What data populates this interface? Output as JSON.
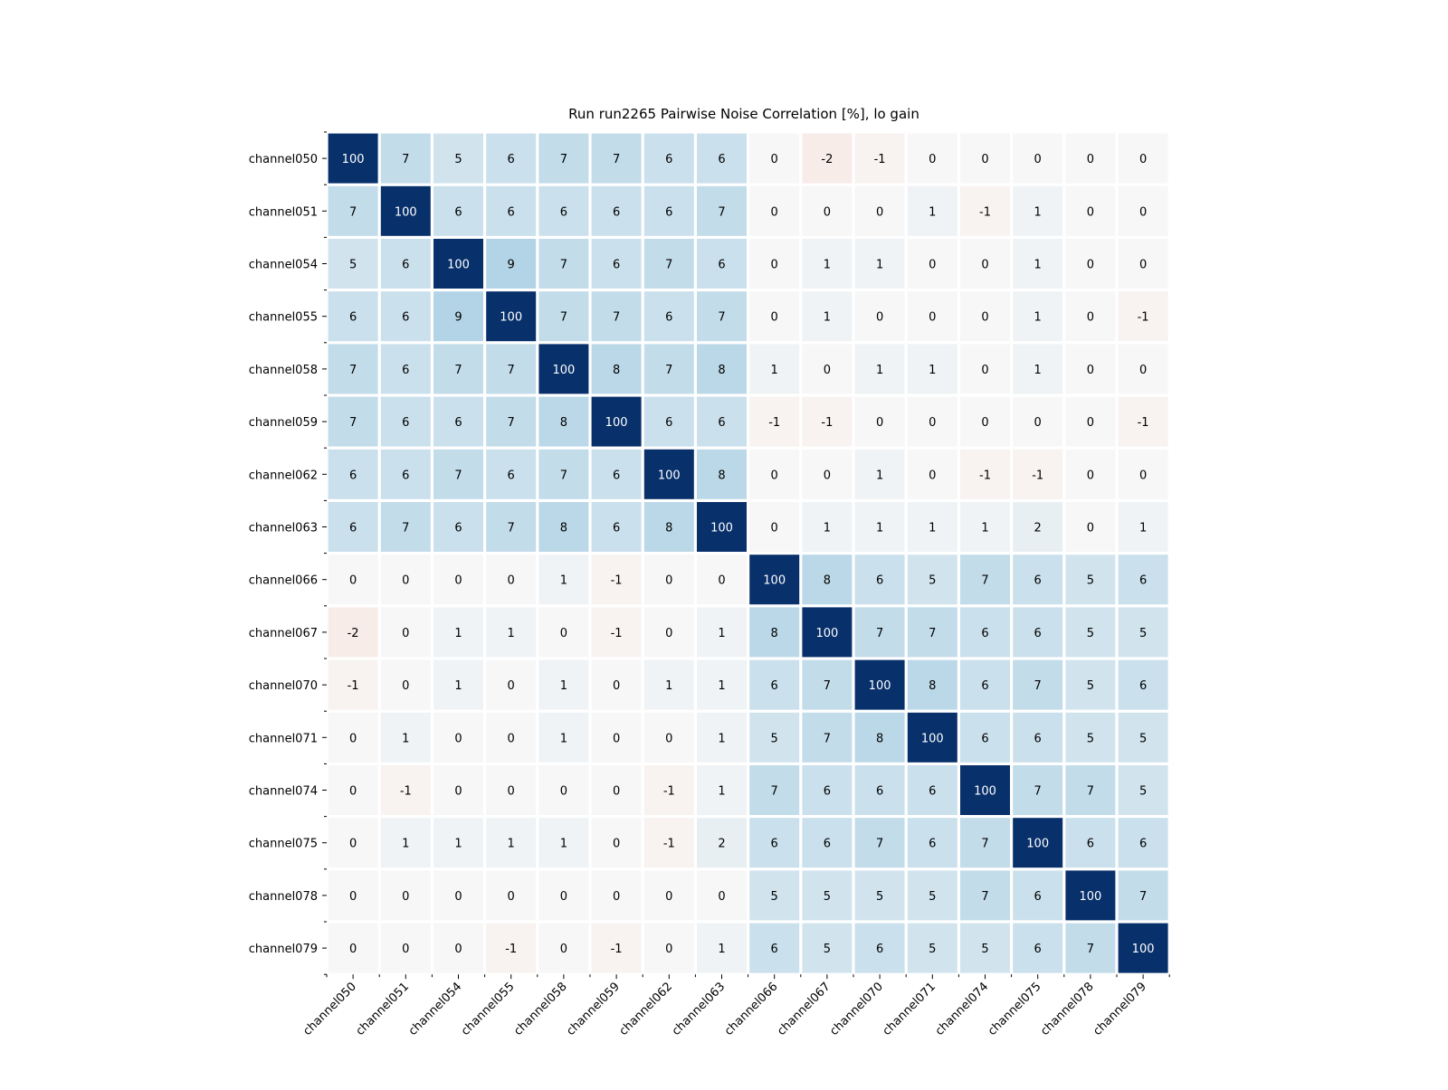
{
  "chart_data": {
    "type": "heatmap",
    "title": "Run run2265 Pairwise Noise Correlation [%], lo gain",
    "xlabel": "",
    "ylabel": "",
    "labels": [
      "channel050",
      "channel051",
      "channel054",
      "channel055",
      "channel058",
      "channel059",
      "channel062",
      "channel063",
      "channel066",
      "channel067",
      "channel070",
      "channel071",
      "channel074",
      "channel075",
      "channel078",
      "channel079"
    ],
    "values": [
      [
        100,
        7,
        5,
        6,
        7,
        7,
        6,
        6,
        0,
        -2,
        -1,
        0,
        0,
        0,
        0,
        0
      ],
      [
        7,
        100,
        6,
        6,
        6,
        6,
        6,
        7,
        0,
        0,
        0,
        1,
        -1,
        1,
        0,
        0
      ],
      [
        5,
        6,
        100,
        9,
        7,
        6,
        7,
        6,
        0,
        1,
        1,
        0,
        0,
        1,
        0,
        0
      ],
      [
        6,
        6,
        9,
        100,
        7,
        7,
        6,
        7,
        0,
        1,
        0,
        0,
        0,
        1,
        0,
        -1
      ],
      [
        7,
        6,
        7,
        7,
        100,
        8,
        7,
        8,
        1,
        0,
        1,
        1,
        0,
        1,
        0,
        0
      ],
      [
        7,
        6,
        6,
        7,
        8,
        100,
        6,
        6,
        -1,
        -1,
        0,
        0,
        0,
        0,
        0,
        -1
      ],
      [
        6,
        6,
        7,
        6,
        7,
        6,
        100,
        8,
        0,
        0,
        1,
        0,
        -1,
        -1,
        0,
        0
      ],
      [
        6,
        7,
        6,
        7,
        8,
        6,
        8,
        100,
        0,
        1,
        1,
        1,
        1,
        2,
        0,
        1
      ],
      [
        0,
        0,
        0,
        0,
        1,
        -1,
        0,
        0,
        100,
        8,
        6,
        5,
        7,
        6,
        5,
        6
      ],
      [
        -2,
        0,
        1,
        1,
        0,
        -1,
        0,
        1,
        8,
        100,
        7,
        7,
        6,
        6,
        5,
        5
      ],
      [
        -1,
        0,
        1,
        0,
        1,
        0,
        1,
        1,
        6,
        7,
        100,
        8,
        6,
        7,
        5,
        6
      ],
      [
        0,
        1,
        0,
        0,
        1,
        0,
        0,
        1,
        5,
        7,
        8,
        100,
        6,
        6,
        5,
        5
      ],
      [
        0,
        -1,
        0,
        0,
        0,
        0,
        -1,
        1,
        7,
        6,
        6,
        6,
        100,
        7,
        7,
        5
      ],
      [
        0,
        1,
        1,
        1,
        1,
        0,
        -1,
        2,
        6,
        6,
        7,
        6,
        7,
        100,
        6,
        6
      ],
      [
        0,
        0,
        0,
        0,
        0,
        0,
        0,
        0,
        5,
        5,
        5,
        5,
        7,
        6,
        100,
        7
      ],
      [
        0,
        0,
        0,
        -1,
        0,
        -1,
        0,
        1,
        6,
        5,
        6,
        5,
        5,
        6,
        7,
        100
      ]
    ],
    "color_scale": {
      "diagonal": "#08306b",
      "diagonal_text": "#ffffff",
      "positive_high": "#b3d4e6",
      "neutral": "#f7f7f7",
      "negative": "#f8ece8"
    }
  }
}
